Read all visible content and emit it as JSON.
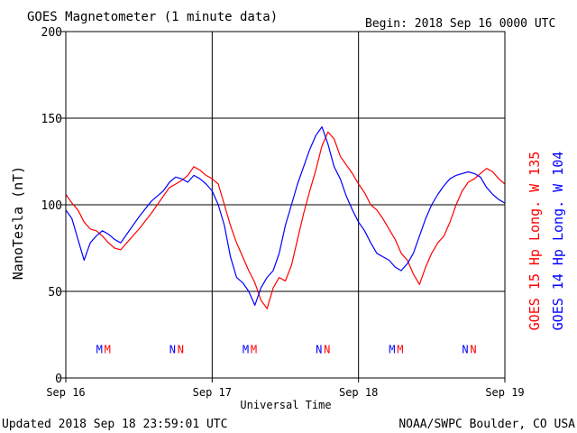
{
  "header": {
    "title": "GOES Magnetometer (1 minute data)",
    "begin": "Begin:  2018 Sep 16 0000 UTC"
  },
  "footer": {
    "updated": "Updated 2018 Sep 18 23:59:01 UTC",
    "source": "NOAA/SWPC Boulder, CO USA"
  },
  "colors": {
    "goes15": "#ff0000",
    "goes14": "#0000ff",
    "axis": "#000000"
  },
  "chart_data": {
    "type": "line",
    "xlabel": "Universal Time",
    "ylabel": "NanoTesla (nT)",
    "ylim": [
      0,
      200
    ],
    "xlim": [
      "2018-09-16T00:00",
      "2018-09-19T00:00"
    ],
    "grid": true,
    "y_ticks": [
      0,
      50,
      100,
      150,
      200
    ],
    "x_ticks": [
      {
        "t": "2018-09-16T00:00",
        "label": "Sep 16"
      },
      {
        "t": "2018-09-17T00:00",
        "label": "Sep 17"
      },
      {
        "t": "2018-09-18T00:00",
        "label": "Sep 18"
      },
      {
        "t": "2018-09-19T00:00",
        "label": "Sep 19"
      }
    ],
    "legend": [
      {
        "label": "GOES 15 Hp  Long. W 135",
        "color": "#ff0000"
      },
      {
        "label": "GOES 14 Hp  Long. W 104",
        "color": "#0000ff"
      }
    ],
    "annotations": [
      {
        "t": "2018-09-16T05:30",
        "y": 17,
        "label": "M",
        "series": "GOES 14"
      },
      {
        "t": "2018-09-16T06:50",
        "y": 17,
        "label": "M",
        "series": "GOES 15"
      },
      {
        "t": "2018-09-16T17:30",
        "y": 17,
        "label": "N",
        "series": "GOES 14"
      },
      {
        "t": "2018-09-16T18:50",
        "y": 17,
        "label": "N",
        "series": "GOES 15"
      },
      {
        "t": "2018-09-17T05:30",
        "y": 17,
        "label": "M",
        "series": "GOES 14"
      },
      {
        "t": "2018-09-17T06:50",
        "y": 17,
        "label": "M",
        "series": "GOES 15"
      },
      {
        "t": "2018-09-17T17:30",
        "y": 17,
        "label": "N",
        "series": "GOES 14"
      },
      {
        "t": "2018-09-17T18:50",
        "y": 17,
        "label": "N",
        "series": "GOES 15"
      },
      {
        "t": "2018-09-18T05:30",
        "y": 17,
        "label": "M",
        "series": "GOES 14"
      },
      {
        "t": "2018-09-18T06:50",
        "y": 17,
        "label": "M",
        "series": "GOES 15"
      },
      {
        "t": "2018-09-18T17:30",
        "y": 17,
        "label": "N",
        "series": "GOES 14"
      },
      {
        "t": "2018-09-18T18:50",
        "y": 17,
        "label": "N",
        "series": "GOES 15"
      }
    ],
    "series": [
      {
        "name": "GOES 15 Hp",
        "color": "#ff0000",
        "x": [
          "2018-09-16T00:00",
          "2018-09-16T01:00",
          "2018-09-16T02:00",
          "2018-09-16T03:00",
          "2018-09-16T04:00",
          "2018-09-16T05:00",
          "2018-09-16T06:00",
          "2018-09-16T07:00",
          "2018-09-16T08:00",
          "2018-09-16T09:00",
          "2018-09-16T10:00",
          "2018-09-16T12:00",
          "2018-09-16T14:00",
          "2018-09-16T16:00",
          "2018-09-16T17:00",
          "2018-09-16T18:00",
          "2018-09-16T19:00",
          "2018-09-16T20:00",
          "2018-09-16T21:00",
          "2018-09-16T22:00",
          "2018-09-16T23:00",
          "2018-09-17T00:00",
          "2018-09-17T01:00",
          "2018-09-17T02:00",
          "2018-09-17T03:00",
          "2018-09-17T04:00",
          "2018-09-17T05:00",
          "2018-09-17T06:00",
          "2018-09-17T07:00",
          "2018-09-17T08:00",
          "2018-09-17T09:00",
          "2018-09-17T10:00",
          "2018-09-17T11:00",
          "2018-09-17T12:00",
          "2018-09-17T13:00",
          "2018-09-17T14:00",
          "2018-09-17T15:00",
          "2018-09-17T16:00",
          "2018-09-17T17:00",
          "2018-09-17T18:00",
          "2018-09-17T19:00",
          "2018-09-17T20:00",
          "2018-09-17T21:00",
          "2018-09-17T22:00",
          "2018-09-17T23:00",
          "2018-09-18T00:00",
          "2018-09-18T01:00",
          "2018-09-18T02:00",
          "2018-09-18T03:00",
          "2018-09-18T04:00",
          "2018-09-18T05:00",
          "2018-09-18T06:00",
          "2018-09-18T07:00",
          "2018-09-18T08:00",
          "2018-09-18T09:00",
          "2018-09-18T10:00",
          "2018-09-18T11:00",
          "2018-09-18T12:00",
          "2018-09-18T13:00",
          "2018-09-18T14:00",
          "2018-09-18T15:00",
          "2018-09-18T16:00",
          "2018-09-18T17:00",
          "2018-09-18T18:00",
          "2018-09-18T19:00",
          "2018-09-18T20:00",
          "2018-09-18T21:00",
          "2018-09-18T22:00",
          "2018-09-18T23:00",
          "2018-09-19T00:00"
        ],
        "y": [
          106,
          101,
          97,
          90,
          86,
          85,
          82,
          78,
          75,
          74,
          78,
          86,
          95,
          105,
          110,
          112,
          114,
          117,
          122,
          120,
          117,
          115,
          112,
          100,
          88,
          78,
          70,
          62,
          55,
          45,
          40,
          52,
          58,
          56,
          65,
          80,
          95,
          108,
          120,
          134,
          142,
          138,
          128,
          123,
          118,
          112,
          107,
          100,
          97,
          92,
          86,
          80,
          72,
          68,
          60,
          54,
          64,
          72,
          78,
          82,
          90,
          100,
          108,
          113,
          115,
          118,
          121,
          119,
          115,
          112
        ]
      },
      {
        "name": "GOES 14 Hp",
        "color": "#0000ff",
        "x": [
          "2018-09-16T00:00",
          "2018-09-16T01:00",
          "2018-09-16T02:00",
          "2018-09-16T03:00",
          "2018-09-16T04:00",
          "2018-09-16T05:00",
          "2018-09-16T06:00",
          "2018-09-16T07:00",
          "2018-09-16T08:00",
          "2018-09-16T09:00",
          "2018-09-16T10:00",
          "2018-09-16T12:00",
          "2018-09-16T14:00",
          "2018-09-16T16:00",
          "2018-09-16T17:00",
          "2018-09-16T18:00",
          "2018-09-16T19:00",
          "2018-09-16T20:00",
          "2018-09-16T21:00",
          "2018-09-16T22:00",
          "2018-09-16T23:00",
          "2018-09-17T00:00",
          "2018-09-17T01:00",
          "2018-09-17T02:00",
          "2018-09-17T03:00",
          "2018-09-17T04:00",
          "2018-09-17T05:00",
          "2018-09-17T06:00",
          "2018-09-17T07:00",
          "2018-09-17T08:00",
          "2018-09-17T09:00",
          "2018-09-17T10:00",
          "2018-09-17T11:00",
          "2018-09-17T12:00",
          "2018-09-17T13:00",
          "2018-09-17T14:00",
          "2018-09-17T15:00",
          "2018-09-17T16:00",
          "2018-09-17T17:00",
          "2018-09-17T18:00",
          "2018-09-17T19:00",
          "2018-09-17T20:00",
          "2018-09-17T21:00",
          "2018-09-17T22:00",
          "2018-09-17T23:00",
          "2018-09-18T00:00",
          "2018-09-18T01:00",
          "2018-09-18T02:00",
          "2018-09-18T03:00",
          "2018-09-18T04:00",
          "2018-09-18T05:00",
          "2018-09-18T06:00",
          "2018-09-18T07:00",
          "2018-09-18T08:00",
          "2018-09-18T09:00",
          "2018-09-18T10:00",
          "2018-09-18T11:00",
          "2018-09-18T12:00",
          "2018-09-18T13:00",
          "2018-09-18T14:00",
          "2018-09-18T15:00",
          "2018-09-18T16:00",
          "2018-09-18T17:00",
          "2018-09-18T18:00",
          "2018-09-18T19:00",
          "2018-09-18T20:00",
          "2018-09-18T21:00",
          "2018-09-18T22:00",
          "2018-09-18T23:00",
          "2018-09-19T00:00"
        ],
        "y": [
          97,
          92,
          80,
          68,
          78,
          82,
          85,
          83,
          80,
          78,
          83,
          93,
          102,
          108,
          113,
          116,
          115,
          113,
          117,
          115,
          112,
          108,
          100,
          88,
          70,
          58,
          55,
          50,
          42,
          52,
          58,
          62,
          72,
          88,
          100,
          112,
          122,
          132,
          140,
          145,
          135,
          122,
          115,
          105,
          97,
          90,
          85,
          78,
          72,
          70,
          68,
          64,
          62,
          66,
          72,
          82,
          92,
          100,
          106,
          111,
          115,
          117,
          118,
          119,
          118,
          116,
          110,
          106,
          103,
          101
        ]
      }
    ]
  }
}
